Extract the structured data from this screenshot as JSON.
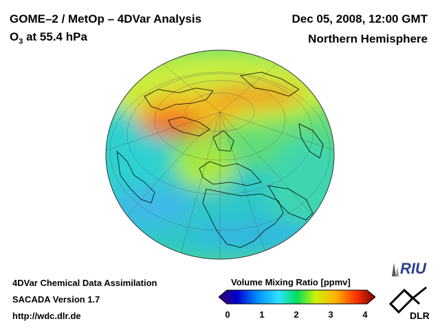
{
  "header": {
    "title": "GOME–2 / MetOp – 4DVar Analysis",
    "subtitle_main": "O",
    "subtitle_sub": "3",
    "subtitle_rest": " at 55.4 hPa",
    "datetime": "Dec 05, 2008, 12:00 GMT",
    "hemisphere": "Northern Hemisphere"
  },
  "colorbar": {
    "title": "Volume Mixing Ratio [ppmv]",
    "ticks": [
      "0",
      "1",
      "2",
      "3",
      "4"
    ],
    "min": 0,
    "max": 4,
    "colors": [
      "#3a0066",
      "#0000d0",
      "#0090ff",
      "#30e0ff",
      "#00e060",
      "#d0f000",
      "#ffb000",
      "#ff3000",
      "#700000"
    ]
  },
  "credits": {
    "line1": "4DVar Chemical Data Assimilation",
    "line2": "SACADA Version 1.7",
    "line3": "http://wdc.dlr.de"
  },
  "logos": {
    "riu": "RIU",
    "dlr": "DLR"
  }
}
